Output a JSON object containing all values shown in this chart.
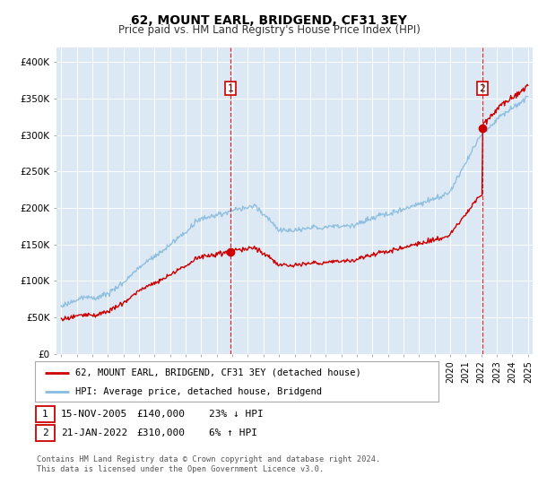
{
  "title": "62, MOUNT EARL, BRIDGEND, CF31 3EY",
  "subtitle": "Price paid vs. HM Land Registry's House Price Index (HPI)",
  "title_fontsize": 10,
  "subtitle_fontsize": 8.5,
  "bg_color": "#dce9f5",
  "fig_bg_color": "#ffffff",
  "red_color": "#cc0000",
  "blue_color": "#88bbdd",
  "ylim": [
    0,
    420000
  ],
  "yticks": [
    0,
    50000,
    100000,
    150000,
    200000,
    250000,
    300000,
    350000,
    400000
  ],
  "ytick_labels": [
    "£0",
    "£50K",
    "£100K",
    "£150K",
    "£200K",
    "£250K",
    "£300K",
    "£350K",
    "£400K"
  ],
  "xlim_start": 1994.7,
  "xlim_end": 2025.3,
  "purchase1_year": 2005.875,
  "purchase1_price": 140000,
  "purchase2_year": 2022.055,
  "purchase2_price": 310000,
  "legend_line1": "62, MOUNT EARL, BRIDGEND, CF31 3EY (detached house)",
  "legend_line2": "HPI: Average price, detached house, Bridgend",
  "table_row1": [
    "1",
    "15-NOV-2005",
    "£140,000",
    "23% ↓ HPI"
  ],
  "table_row2": [
    "2",
    "21-JAN-2022",
    "£310,000",
    "6% ↑ HPI"
  ],
  "footer": "Contains HM Land Registry data © Crown copyright and database right 2024.\nThis data is licensed under the Open Government Licence v3.0.",
  "xtick_years": [
    1995,
    1996,
    1997,
    1998,
    1999,
    2000,
    2001,
    2002,
    2003,
    2004,
    2005,
    2006,
    2007,
    2008,
    2009,
    2010,
    2011,
    2012,
    2013,
    2014,
    2015,
    2016,
    2017,
    2018,
    2019,
    2020,
    2021,
    2022,
    2023,
    2024,
    2025
  ]
}
